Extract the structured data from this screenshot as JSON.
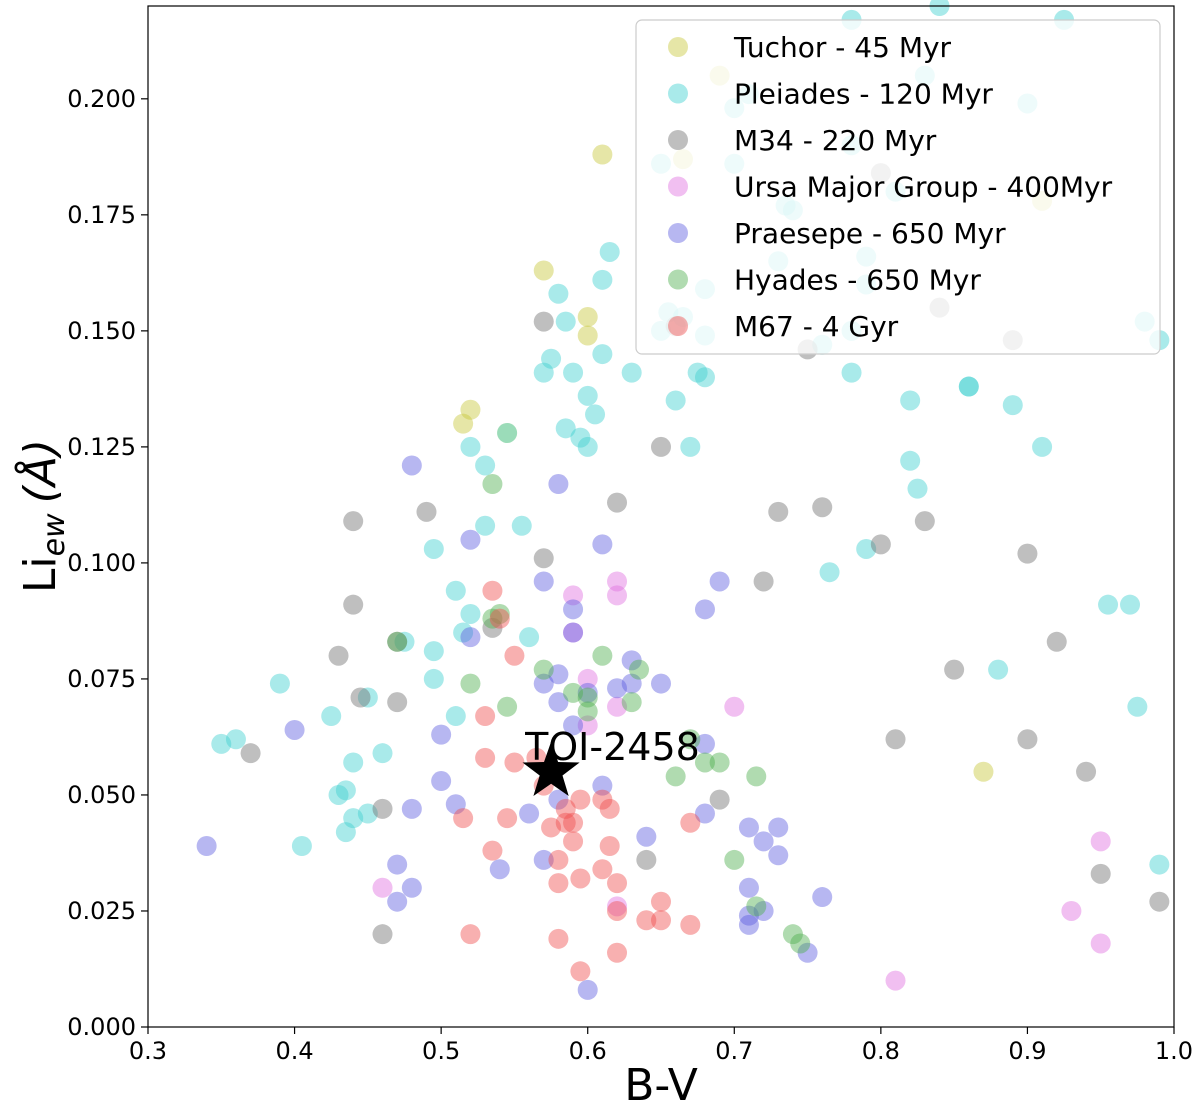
{
  "chart_data": {
    "type": "scatter",
    "title": "",
    "xlabel": "B-V",
    "ylabel_main": "Li",
    "ylabel_sub": "ew",
    "ylabel_unit": "(Å)",
    "xlim": [
      0.3,
      1.0
    ],
    "ylim": [
      0.0,
      0.22
    ],
    "xticks": [
      "0.3",
      "0.4",
      "0.5",
      "0.6",
      "0.7",
      "0.8",
      "0.9",
      "1.0"
    ],
    "yticks": [
      "0.000",
      "0.025",
      "0.050",
      "0.075",
      "0.100",
      "0.125",
      "0.150",
      "0.175",
      "0.200"
    ],
    "grid": false,
    "legend_position": "top-right",
    "series": [
      {
        "name": "Tuchor - 45 Myr",
        "color": "#c8c83c",
        "points": [
          [
            0.52,
            0.133
          ],
          [
            0.515,
            0.13
          ],
          [
            0.545,
            0.128
          ],
          [
            0.57,
            0.163
          ],
          [
            0.6,
            0.153
          ],
          [
            0.6,
            0.149
          ],
          [
            0.61,
            0.188
          ],
          [
            0.69,
            0.205
          ],
          [
            0.665,
            0.187
          ],
          [
            0.91,
            0.178
          ],
          [
            0.87,
            0.055
          ]
        ]
      },
      {
        "name": "Pleiades - 120 Myr",
        "color": "#40d0d0",
        "points": [
          [
            0.35,
            0.061
          ],
          [
            0.36,
            0.062
          ],
          [
            0.39,
            0.074
          ],
          [
            0.405,
            0.039
          ],
          [
            0.425,
            0.067
          ],
          [
            0.43,
            0.05
          ],
          [
            0.435,
            0.051
          ],
          [
            0.44,
            0.045
          ],
          [
            0.435,
            0.042
          ],
          [
            0.44,
            0.057
          ],
          [
            0.45,
            0.046
          ],
          [
            0.45,
            0.071
          ],
          [
            0.46,
            0.059
          ],
          [
            0.475,
            0.083
          ],
          [
            0.495,
            0.081
          ],
          [
            0.495,
            0.075
          ],
          [
            0.495,
            0.103
          ],
          [
            0.51,
            0.067
          ],
          [
            0.51,
            0.094
          ],
          [
            0.515,
            0.085
          ],
          [
            0.52,
            0.089
          ],
          [
            0.52,
            0.125
          ],
          [
            0.53,
            0.121
          ],
          [
            0.53,
            0.108
          ],
          [
            0.545,
            0.128
          ],
          [
            0.555,
            0.108
          ],
          [
            0.57,
            0.141
          ],
          [
            0.575,
            0.144
          ],
          [
            0.58,
            0.158
          ],
          [
            0.585,
            0.129
          ],
          [
            0.585,
            0.152
          ],
          [
            0.59,
            0.141
          ],
          [
            0.595,
            0.127
          ],
          [
            0.6,
            0.136
          ],
          [
            0.6,
            0.125
          ],
          [
            0.605,
            0.132
          ],
          [
            0.61,
            0.145
          ],
          [
            0.61,
            0.161
          ],
          [
            0.615,
            0.167
          ],
          [
            0.63,
            0.141
          ],
          [
            0.65,
            0.186
          ],
          [
            0.65,
            0.15
          ],
          [
            0.655,
            0.154
          ],
          [
            0.66,
            0.135
          ],
          [
            0.665,
            0.153
          ],
          [
            0.67,
            0.125
          ],
          [
            0.675,
            0.141
          ],
          [
            0.68,
            0.14
          ],
          [
            0.68,
            0.149
          ],
          [
            0.68,
            0.159
          ],
          [
            0.7,
            0.186
          ],
          [
            0.7,
            0.198
          ],
          [
            0.71,
            0.201
          ],
          [
            0.73,
            0.165
          ],
          [
            0.735,
            0.177
          ],
          [
            0.74,
            0.176
          ],
          [
            0.76,
            0.147
          ],
          [
            0.765,
            0.098
          ],
          [
            0.78,
            0.141
          ],
          [
            0.78,
            0.15
          ],
          [
            0.78,
            0.19
          ],
          [
            0.78,
            0.217
          ],
          [
            0.79,
            0.166
          ],
          [
            0.79,
            0.16
          ],
          [
            0.79,
            0.103
          ],
          [
            0.81,
            0.18
          ],
          [
            0.82,
            0.135
          ],
          [
            0.82,
            0.122
          ],
          [
            0.825,
            0.116
          ],
          [
            0.83,
            0.205
          ],
          [
            0.84,
            0.22
          ],
          [
            0.86,
            0.138
          ],
          [
            0.86,
            0.138
          ],
          [
            0.88,
            0.077
          ],
          [
            0.89,
            0.134
          ],
          [
            0.9,
            0.199
          ],
          [
            0.91,
            0.125
          ],
          [
            0.925,
            0.217
          ],
          [
            0.955,
            0.091
          ],
          [
            0.97,
            0.091
          ],
          [
            0.975,
            0.069
          ],
          [
            0.98,
            0.152
          ],
          [
            0.99,
            0.148
          ],
          [
            0.99,
            0.035
          ],
          [
            0.56,
            0.084
          ],
          [
            0.575,
            0.055
          ]
        ]
      },
      {
        "name": "M34 - 220 Myr",
        "color": "#707070",
        "points": [
          [
            0.37,
            0.059
          ],
          [
            0.43,
            0.08
          ],
          [
            0.44,
            0.109
          ],
          [
            0.44,
            0.091
          ],
          [
            0.445,
            0.071
          ],
          [
            0.46,
            0.047
          ],
          [
            0.46,
            0.02
          ],
          [
            0.47,
            0.083
          ],
          [
            0.47,
            0.07
          ],
          [
            0.49,
            0.111
          ],
          [
            0.535,
            0.086
          ],
          [
            0.57,
            0.152
          ],
          [
            0.57,
            0.101
          ],
          [
            0.62,
            0.113
          ],
          [
            0.64,
            0.036
          ],
          [
            0.65,
            0.125
          ],
          [
            0.66,
            0.151
          ],
          [
            0.69,
            0.049
          ],
          [
            0.72,
            0.096
          ],
          [
            0.73,
            0.111
          ],
          [
            0.75,
            0.146
          ],
          [
            0.76,
            0.112
          ],
          [
            0.8,
            0.104
          ],
          [
            0.8,
            0.184
          ],
          [
            0.81,
            0.062
          ],
          [
            0.83,
            0.109
          ],
          [
            0.84,
            0.155
          ],
          [
            0.85,
            0.077
          ],
          [
            0.89,
            0.148
          ],
          [
            0.9,
            0.102
          ],
          [
            0.9,
            0.062
          ],
          [
            0.92,
            0.083
          ],
          [
            0.94,
            0.055
          ],
          [
            0.95,
            0.033
          ],
          [
            0.99,
            0.027
          ]
        ]
      },
      {
        "name": "Ursa Major Group - 400Myr",
        "color": "#e070e0",
        "points": [
          [
            0.46,
            0.03
          ],
          [
            0.59,
            0.093
          ],
          [
            0.59,
            0.085
          ],
          [
            0.6,
            0.075
          ],
          [
            0.6,
            0.065
          ],
          [
            0.62,
            0.096
          ],
          [
            0.62,
            0.093
          ],
          [
            0.62,
            0.069
          ],
          [
            0.62,
            0.026
          ],
          [
            0.7,
            0.069
          ],
          [
            0.81,
            0.01
          ],
          [
            0.93,
            0.025
          ],
          [
            0.95,
            0.04
          ],
          [
            0.95,
            0.018
          ]
        ]
      },
      {
        "name": "Praesepe - 650 Myr",
        "color": "#6060e0",
        "points": [
          [
            0.34,
            0.039
          ],
          [
            0.4,
            0.064
          ],
          [
            0.47,
            0.035
          ],
          [
            0.47,
            0.027
          ],
          [
            0.48,
            0.121
          ],
          [
            0.48,
            0.047
          ],
          [
            0.48,
            0.03
          ],
          [
            0.5,
            0.063
          ],
          [
            0.5,
            0.053
          ],
          [
            0.51,
            0.048
          ],
          [
            0.52,
            0.105
          ],
          [
            0.52,
            0.084
          ],
          [
            0.54,
            0.034
          ],
          [
            0.56,
            0.046
          ],
          [
            0.57,
            0.096
          ],
          [
            0.57,
            0.074
          ],
          [
            0.57,
            0.036
          ],
          [
            0.58,
            0.117
          ],
          [
            0.58,
            0.076
          ],
          [
            0.58,
            0.07
          ],
          [
            0.58,
            0.049
          ],
          [
            0.59,
            0.09
          ],
          [
            0.59,
            0.085
          ],
          [
            0.59,
            0.065
          ],
          [
            0.6,
            0.072
          ],
          [
            0.6,
            0.008
          ],
          [
            0.61,
            0.104
          ],
          [
            0.61,
            0.052
          ],
          [
            0.62,
            0.073
          ],
          [
            0.63,
            0.079
          ],
          [
            0.63,
            0.074
          ],
          [
            0.64,
            0.041
          ],
          [
            0.65,
            0.074
          ],
          [
            0.68,
            0.09
          ],
          [
            0.68,
            0.061
          ],
          [
            0.68,
            0.046
          ],
          [
            0.69,
            0.096
          ],
          [
            0.71,
            0.043
          ],
          [
            0.71,
            0.03
          ],
          [
            0.71,
            0.024
          ],
          [
            0.71,
            0.022
          ],
          [
            0.72,
            0.04
          ],
          [
            0.72,
            0.025
          ],
          [
            0.73,
            0.043
          ],
          [
            0.73,
            0.037
          ],
          [
            0.75,
            0.016
          ],
          [
            0.76,
            0.028
          ]
        ]
      },
      {
        "name": "Hyades - 650 Myr",
        "color": "#50b050",
        "points": [
          [
            0.47,
            0.083
          ],
          [
            0.52,
            0.074
          ],
          [
            0.535,
            0.117
          ],
          [
            0.535,
            0.088
          ],
          [
            0.54,
            0.089
          ],
          [
            0.545,
            0.069
          ],
          [
            0.57,
            0.077
          ],
          [
            0.59,
            0.072
          ],
          [
            0.6,
            0.068
          ],
          [
            0.6,
            0.071
          ],
          [
            0.61,
            0.08
          ],
          [
            0.63,
            0.07
          ],
          [
            0.635,
            0.077
          ],
          [
            0.66,
            0.054
          ],
          [
            0.67,
            0.062
          ],
          [
            0.68,
            0.057
          ],
          [
            0.69,
            0.057
          ],
          [
            0.7,
            0.036
          ],
          [
            0.715,
            0.054
          ],
          [
            0.715,
            0.026
          ],
          [
            0.74,
            0.02
          ],
          [
            0.745,
            0.018
          ]
        ]
      },
      {
        "name": "M67 - 4 Gyr",
        "color": "#f05050",
        "points": [
          [
            0.515,
            0.045
          ],
          [
            0.52,
            0.02
          ],
          [
            0.53,
            0.067
          ],
          [
            0.53,
            0.058
          ],
          [
            0.535,
            0.094
          ],
          [
            0.535,
            0.038
          ],
          [
            0.54,
            0.088
          ],
          [
            0.545,
            0.045
          ],
          [
            0.55,
            0.08
          ],
          [
            0.55,
            0.057
          ],
          [
            0.565,
            0.058
          ],
          [
            0.57,
            0.052
          ],
          [
            0.575,
            0.043
          ],
          [
            0.58,
            0.036
          ],
          [
            0.58,
            0.031
          ],
          [
            0.58,
            0.019
          ],
          [
            0.585,
            0.047
          ],
          [
            0.585,
            0.044
          ],
          [
            0.59,
            0.044
          ],
          [
            0.59,
            0.04
          ],
          [
            0.595,
            0.049
          ],
          [
            0.595,
            0.032
          ],
          [
            0.595,
            0.012
          ],
          [
            0.61,
            0.049
          ],
          [
            0.61,
            0.034
          ],
          [
            0.615,
            0.047
          ],
          [
            0.615,
            0.039
          ],
          [
            0.62,
            0.031
          ],
          [
            0.62,
            0.025
          ],
          [
            0.62,
            0.016
          ],
          [
            0.64,
            0.023
          ],
          [
            0.65,
            0.027
          ],
          [
            0.65,
            0.023
          ],
          [
            0.67,
            0.044
          ],
          [
            0.67,
            0.022
          ]
        ]
      }
    ],
    "target": {
      "name": "TOI-2458",
      "x": 0.575,
      "y": 0.055,
      "color": "#000000"
    }
  }
}
